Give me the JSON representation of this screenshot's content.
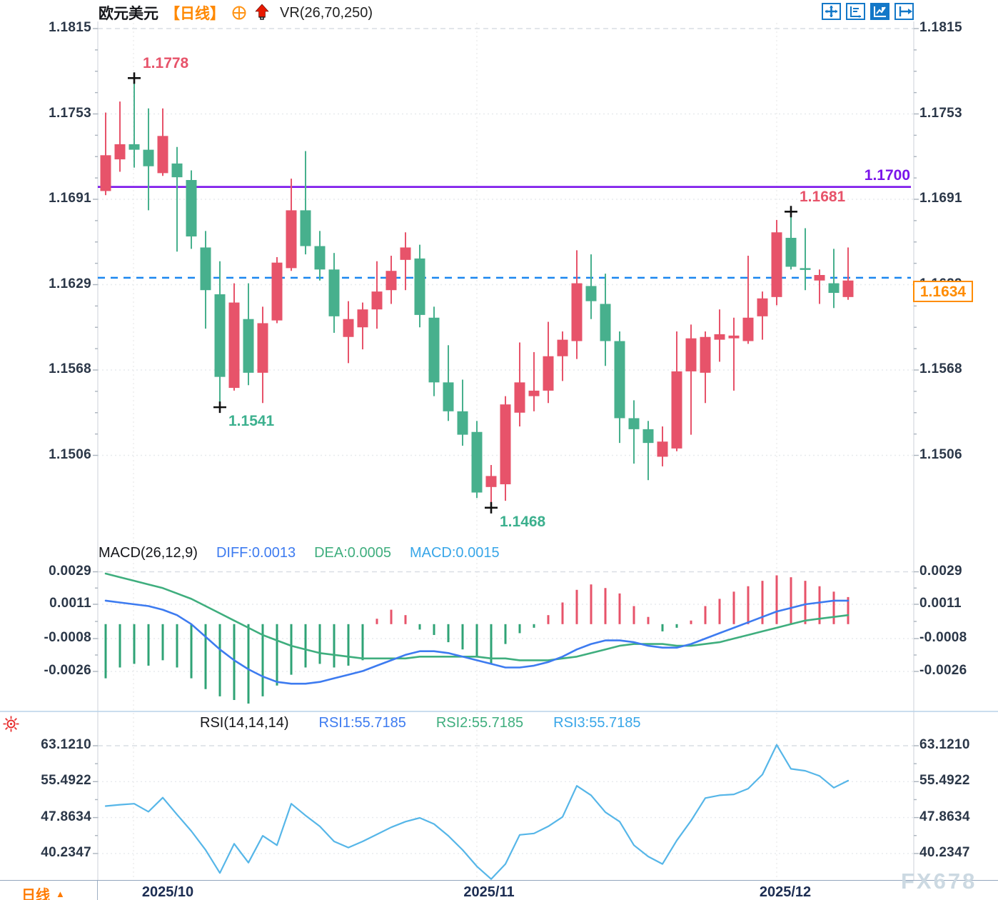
{
  "header": {
    "title": "欧元美元",
    "period_tag": "【日线】",
    "indicator_label": "VR(26,70,250)",
    "toolbar_icon_names": [
      "crosshair-icon",
      "axis-scale-icon",
      "chart-type-icon",
      "exit-panel-icon"
    ]
  },
  "price_axis": {
    "ticks": [
      "1.1815",
      "1.1753",
      "1.1691",
      "1.1629",
      "1.1568",
      "1.1506"
    ]
  },
  "overlays": {
    "hline": {
      "value": 1.17,
      "label": "1.1700",
      "color": "#7a14ea"
    },
    "last_price": {
      "value": 1.1634,
      "label": "1.1634",
      "color": "#ff8c00"
    }
  },
  "annotations": [
    {
      "kind": "high",
      "index": 2,
      "value": 1.1778,
      "label": "1.1778",
      "color": "#e7536a"
    },
    {
      "kind": "low",
      "index": 8,
      "value": 1.1541,
      "label": "1.1541",
      "color": "#3cb08e"
    },
    {
      "kind": "low",
      "index": 27,
      "value": 1.1468,
      "label": "1.1468",
      "color": "#3cb08e"
    },
    {
      "kind": "high",
      "index": 48,
      "value": 1.1681,
      "label": "1.1681",
      "color": "#e7536a"
    }
  ],
  "macd_panel": {
    "title": "MACD(26,12,9)",
    "diff_label": "DIFF:0.0013",
    "dea_label": "DEA:0.0005",
    "macd_label": "MACD:0.0015",
    "ticks": [
      "0.0029",
      "0.0011",
      "-0.0008",
      "-0.0026"
    ]
  },
  "rsi_panel": {
    "title": "RSI(14,14,14)",
    "rsi1_label": "RSI1:55.7185",
    "rsi2_label": "RSI2:55.7185",
    "rsi3_label": "RSI3:55.7185",
    "ticks": [
      "63.1210",
      "55.4922",
      "47.8634",
      "40.2347"
    ]
  },
  "footer": {
    "period": "日线",
    "arrow": "▲",
    "dates": [
      "2025/10",
      "2025/11",
      "2025/12"
    ],
    "watermark": "FX678"
  },
  "colors": {
    "up": "#e7536a",
    "down": "#47b08d",
    "diff_line": "#3d7bf0",
    "dea_line": "#3fae7e",
    "rsi_line": "#56b6e8",
    "support_line": "#7a14ea",
    "current_price_line": "#1a86f0",
    "accent_orange": "#ff8800",
    "toolbar_blue": "#1478c8"
  },
  "chart_data": [
    {
      "type": "candlestick",
      "title": "欧元美元 日线 (EUR/USD daily)",
      "ylabel": "price",
      "ylim": [
        1.1468,
        1.1815
      ],
      "up_color_means": "red = up (CN convention), green = down",
      "support_line": 1.17,
      "current_price": 1.1634,
      "x_dates": [
        "2025/10",
        "2025/11",
        "2025/12"
      ],
      "candles_ohlc": [
        [
          1.1697,
          1.1754,
          1.1694,
          1.1723
        ],
        [
          1.172,
          1.1762,
          1.1711,
          1.1731
        ],
        [
          1.1731,
          1.1778,
          1.1714,
          1.1727
        ],
        [
          1.1727,
          1.1757,
          1.1683,
          1.1715
        ],
        [
          1.171,
          1.1757,
          1.1708,
          1.1737
        ],
        [
          1.1717,
          1.1729,
          1.1653,
          1.1707
        ],
        [
          1.1705,
          1.1712,
          1.1655,
          1.1664
        ],
        [
          1.1656,
          1.1668,
          1.1597,
          1.1625
        ],
        [
          1.1622,
          1.1646,
          1.1541,
          1.1562
        ],
        [
          1.1554,
          1.163,
          1.1552,
          1.1616
        ],
        [
          1.1604,
          1.163,
          1.1556,
          1.1565
        ],
        [
          1.1565,
          1.1613,
          1.1543,
          1.1601
        ],
        [
          1.1603,
          1.1649,
          1.1601,
          1.1645
        ],
        [
          1.1641,
          1.1706,
          1.1639,
          1.1683
        ],
        [
          1.1683,
          1.1726,
          1.1651,
          1.1657
        ],
        [
          1.1657,
          1.1668,
          1.1632,
          1.164
        ],
        [
          1.164,
          1.1652,
          1.1594,
          1.1606
        ],
        [
          1.1591,
          1.1617,
          1.1572,
          1.1604
        ],
        [
          1.1598,
          1.1616,
          1.1582,
          1.1611
        ],
        [
          1.1611,
          1.1646,
          1.1597,
          1.1624
        ],
        [
          1.1625,
          1.165,
          1.1615,
          1.1639
        ],
        [
          1.1647,
          1.1667,
          1.1625,
          1.1656
        ],
        [
          1.1648,
          1.1658,
          1.1598,
          1.1607
        ],
        [
          1.1605,
          1.1613,
          1.1548,
          1.1558
        ],
        [
          1.1558,
          1.1585,
          1.153,
          1.1537
        ],
        [
          1.1537,
          1.156,
          1.1512,
          1.152
        ],
        [
          1.1522,
          1.153,
          1.1474,
          1.1478
        ],
        [
          1.1482,
          1.1498,
          1.1468,
          1.149
        ],
        [
          1.1484,
          1.1548,
          1.1472,
          1.1542
        ],
        [
          1.1536,
          1.1587,
          1.1526,
          1.1558
        ],
        [
          1.1548,
          1.158,
          1.1537,
          1.1552
        ],
        [
          1.1552,
          1.1602,
          1.1543,
          1.1577
        ],
        [
          1.1577,
          1.1595,
          1.1559,
          1.1589
        ],
        [
          1.1588,
          1.1654,
          1.1575,
          1.163
        ],
        [
          1.1628,
          1.1651,
          1.1604,
          1.1617
        ],
        [
          1.1615,
          1.1637,
          1.157,
          1.1588
        ],
        [
          1.1588,
          1.1595,
          1.1514,
          1.1532
        ],
        [
          1.1532,
          1.1545,
          1.1499,
          1.1524
        ],
        [
          1.1524,
          1.153,
          1.1487,
          1.1514
        ],
        [
          1.1504,
          1.1526,
          1.1497,
          1.1515
        ],
        [
          1.151,
          1.1595,
          1.1508,
          1.1566
        ],
        [
          1.1566,
          1.16,
          1.152,
          1.159
        ],
        [
          1.1565,
          1.1595,
          1.1543,
          1.1591
        ],
        [
          1.1589,
          1.1611,
          1.1573,
          1.1593
        ],
        [
          1.159,
          1.1605,
          1.1552,
          1.1592
        ],
        [
          1.1588,
          1.165,
          1.1586,
          1.1605
        ],
        [
          1.1606,
          1.1624,
          1.1589,
          1.1619
        ],
        [
          1.162,
          1.1676,
          1.1614,
          1.1667
        ],
        [
          1.1663,
          1.1681,
          1.164,
          1.1642
        ],
        [
          1.1641,
          1.167,
          1.1625,
          1.164
        ],
        [
          1.1632,
          1.164,
          1.1615,
          1.1636
        ],
        [
          1.163,
          1.1655,
          1.1612,
          1.1623
        ],
        [
          1.162,
          1.1656,
          1.1618,
          1.1632
        ]
      ]
    },
    {
      "type": "bar",
      "title": "MACD(26,12,9)",
      "last_values": {
        "DIFF": 0.0013,
        "DEA": 0.0005,
        "MACD": 0.0015
      },
      "ylim": [
        -0.0044,
        0.0033
      ],
      "histogram": [
        -0.003,
        -0.0024,
        -0.0022,
        -0.0023,
        -0.002,
        -0.0024,
        -0.003,
        -0.0036,
        -0.004,
        -0.0042,
        -0.0044,
        -0.004,
        -0.0034,
        -0.0028,
        -0.0024,
        -0.0022,
        -0.0024,
        -0.0023,
        -0.002,
        0.0003,
        0.0008,
        0.0005,
        -0.0003,
        -0.0006,
        -0.001,
        -0.0014,
        -0.0018,
        -0.0022,
        -0.0011,
        -0.0005,
        -0.0002,
        0.0005,
        0.0012,
        0.0019,
        0.0022,
        0.002,
        0.0017,
        0.001,
        0.0004,
        -0.0004,
        -0.0002,
        0.0002,
        0.001,
        0.0014,
        0.0018,
        0.0021,
        0.0024,
        0.0027,
        0.0026,
        0.0024,
        0.0021,
        0.0018,
        0.0015
      ],
      "series": [
        {
          "name": "DIFF",
          "values": [
            0.0013,
            0.0012,
            0.0011,
            0.001,
            0.0008,
            0.0005,
            0.0,
            -0.0007,
            -0.0014,
            -0.002,
            -0.0025,
            -0.0029,
            -0.0032,
            -0.0033,
            -0.0033,
            -0.0032,
            -0.003,
            -0.0028,
            -0.0026,
            -0.0023,
            -0.002,
            -0.0017,
            -0.0015,
            -0.0015,
            -0.0016,
            -0.0018,
            -0.002,
            -0.0022,
            -0.0024,
            -0.0024,
            -0.0023,
            -0.0021,
            -0.0018,
            -0.0014,
            -0.0011,
            -0.0009,
            -0.0009,
            -0.001,
            -0.0012,
            -0.0013,
            -0.0013,
            -0.0011,
            -0.0008,
            -0.0005,
            -0.0002,
            0.0001,
            0.0004,
            0.0007,
            0.0009,
            0.0011,
            0.0012,
            0.0013,
            0.0013
          ]
        },
        {
          "name": "DEA",
          "values": [
            0.0028,
            0.0026,
            0.0024,
            0.0022,
            0.002,
            0.0017,
            0.0014,
            0.001,
            0.0006,
            0.0002,
            -0.0002,
            -0.0006,
            -0.0009,
            -0.0012,
            -0.0014,
            -0.0016,
            -0.0017,
            -0.0018,
            -0.0019,
            -0.0019,
            -0.0019,
            -0.0019,
            -0.0018,
            -0.0018,
            -0.0018,
            -0.0018,
            -0.0018,
            -0.0019,
            -0.0019,
            -0.002,
            -0.002,
            -0.002,
            -0.0019,
            -0.0018,
            -0.0016,
            -0.0014,
            -0.0012,
            -0.0011,
            -0.0011,
            -0.0011,
            -0.0012,
            -0.0012,
            -0.0011,
            -0.001,
            -0.0008,
            -0.0006,
            -0.0004,
            -0.0002,
            0.0,
            0.0002,
            0.0003,
            0.0004,
            0.0005
          ]
        }
      ]
    },
    {
      "type": "line",
      "title": "RSI(14,14,14)",
      "last_values": {
        "RSI1": 55.7185,
        "RSI2": 55.7185,
        "RSI3": 55.7185
      },
      "ylim": [
        33,
        66
      ],
      "values": [
        50.3,
        50.6,
        50.8,
        49.1,
        52.1,
        48.5,
        45.0,
        41.0,
        36.1,
        42.3,
        38.3,
        44.0,
        42.0,
        50.8,
        48.3,
        46.0,
        42.8,
        41.5,
        42.8,
        44.3,
        45.8,
        47.0,
        47.8,
        46.5,
        44.0,
        41.0,
        37.5,
        34.8,
        38.0,
        44.2,
        44.5,
        46.0,
        48.0,
        54.6,
        52.6,
        49.0,
        47.0,
        42.0,
        39.6,
        38.0,
        43.0,
        47.2,
        52.0,
        52.6,
        52.8,
        54.0,
        57.0,
        63.3,
        58.2,
        57.8,
        56.7,
        54.2,
        55.7
      ]
    }
  ]
}
